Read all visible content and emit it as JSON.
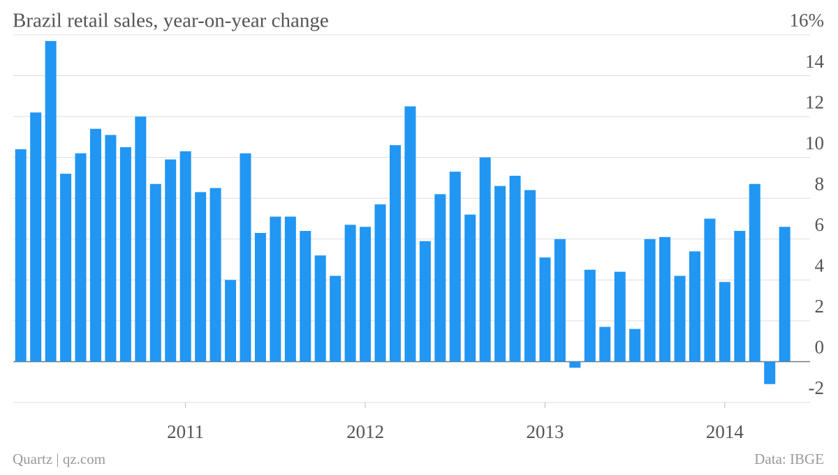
{
  "chart_data": {
    "type": "bar",
    "title": "Brazil retail sales, year-on-year change",
    "source": "Data: IBGE",
    "credit": "Quartz | qz.com",
    "color": "#2196f3",
    "grid": true,
    "categories": [
      null,
      null,
      null,
      null,
      null,
      null,
      null,
      null,
      null,
      null,
      null,
      "2011",
      null,
      null,
      null,
      null,
      null,
      null,
      null,
      null,
      null,
      null,
      null,
      "2012",
      null,
      null,
      null,
      null,
      null,
      null,
      null,
      null,
      null,
      null,
      null,
      "2013",
      null,
      null,
      null,
      null,
      null,
      null,
      null,
      null,
      null,
      null,
      null,
      "2014",
      null,
      null,
      null,
      null
    ],
    "values": [
      10.4,
      12.2,
      15.7,
      9.2,
      10.2,
      11.4,
      11.1,
      10.5,
      12.0,
      8.7,
      9.9,
      10.3,
      8.3,
      8.5,
      4.0,
      10.2,
      6.3,
      7.1,
      7.1,
      6.4,
      5.2,
      4.2,
      6.7,
      6.6,
      7.7,
      10.6,
      12.5,
      5.9,
      8.2,
      9.3,
      7.2,
      10.0,
      8.6,
      9.1,
      8.4,
      5.1,
      6.0,
      -0.3,
      4.5,
      1.7,
      4.4,
      1.6,
      6.0,
      6.1,
      4.2,
      5.4,
      7.0,
      3.9,
      6.4,
      8.7,
      -1.1,
      6.6
    ],
    "ylim": [
      -2,
      16
    ],
    "yticks": [
      -2,
      0,
      2,
      4,
      6,
      8,
      10,
      12,
      14,
      {
        "value": 16,
        "label": "16%"
      }
    ]
  }
}
